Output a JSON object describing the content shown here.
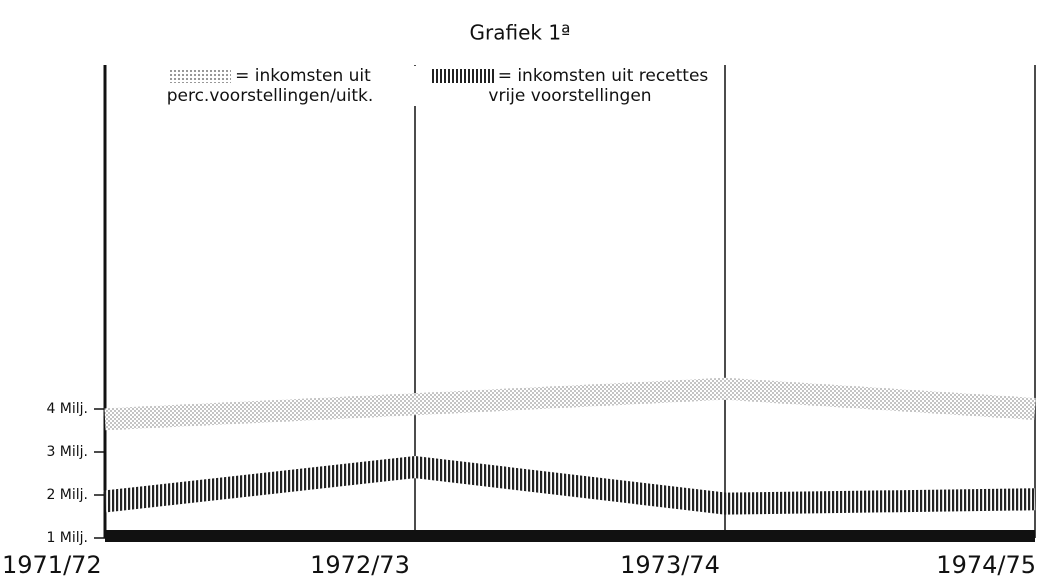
{
  "chart_data": {
    "type": "line",
    "title": "Grafiek 1ª",
    "categories": [
      "1971/72",
      "1972/73",
      "1973/74",
      "1974/75"
    ],
    "series": [
      {
        "name": "= inkomsten uit perc.voorstellingen/uitk.",
        "color": "#b8b8b8",
        "pattern": "dots",
        "values": [
          3.76,
          4.11,
          4.47,
          4.0
        ]
      },
      {
        "name": "= inkomsten uit recettes vrije voorstellingen",
        "color": "#222222",
        "pattern": "hatch",
        "values": [
          1.85,
          2.65,
          1.8,
          1.9
        ]
      }
    ],
    "ylim": [
      1,
      12
    ],
    "yticks": [
      {
        "value": 1,
        "label": "1 Milj."
      },
      {
        "value": 2,
        "label": "2 Milj."
      },
      {
        "value": 3,
        "label": "3 Milj."
      },
      {
        "value": 4,
        "label": "4 Milj."
      }
    ]
  }
}
